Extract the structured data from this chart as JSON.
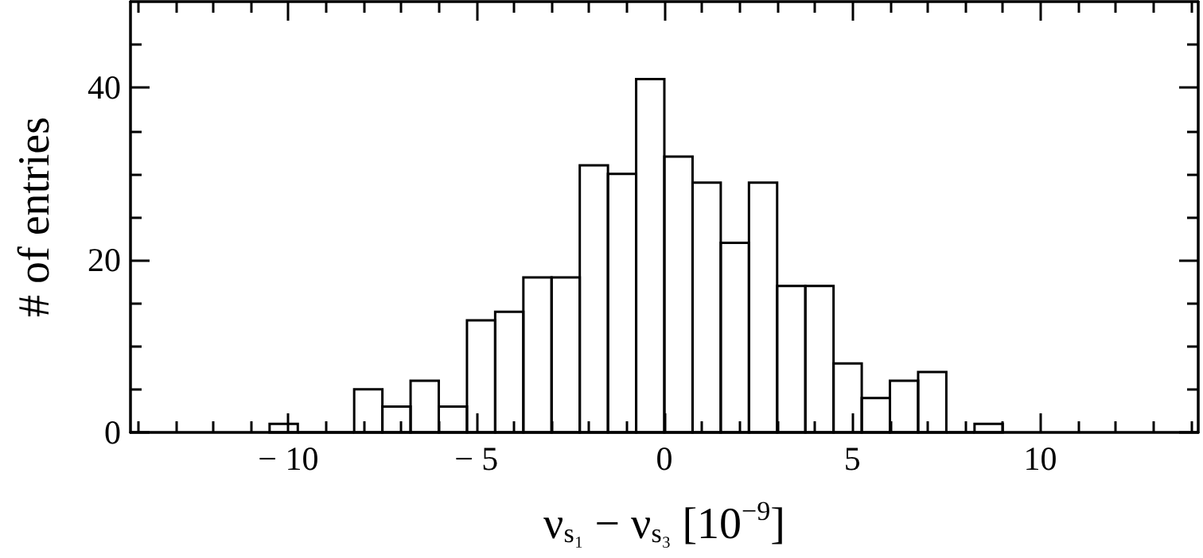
{
  "chart_data": {
    "type": "histogram",
    "xlabel": "ν$_{s₁}$ − ν$_{s₃}$ [10$^{−9}$]",
    "ylabel": "# of entries",
    "bins": [
      -10.5,
      -9.75,
      -9,
      -8.25,
      -7.5,
      -6.75,
      -6,
      -5.25,
      -4.5,
      -3.75,
      -3,
      -2.25,
      -1.5,
      -0.75,
      0,
      0.75,
      1.5,
      2.25,
      3,
      3.75,
      4.5,
      5.25,
      6,
      6.75,
      7.5,
      8.25,
      9
    ],
    "values": [
      1,
      0,
      0,
      5,
      3,
      6,
      3,
      13,
      14,
      18,
      18,
      31,
      30,
      41,
      32,
      29,
      22,
      29,
      17,
      17,
      8,
      4,
      6,
      7,
      0,
      1
    ],
    "xlim": [
      -14.2,
      14.2
    ],
    "xticks": [
      {
        "value": -14,
        "label": null
      },
      {
        "value": -13,
        "label": null
      },
      {
        "value": -12,
        "label": null
      },
      {
        "value": -11,
        "label": null
      },
      {
        "value": -10,
        "label": "− 10"
      },
      {
        "value": -9,
        "label": null
      },
      {
        "value": -8,
        "label": null
      },
      {
        "value": -7,
        "label": null
      },
      {
        "value": -6,
        "label": null
      },
      {
        "value": -5,
        "label": "− 5"
      },
      {
        "value": -4,
        "label": null
      },
      {
        "value": -3,
        "label": null
      },
      {
        "value": -2,
        "label": null
      },
      {
        "value": -1,
        "label": null
      },
      0,
      {
        "value": 1,
        "label": null
      },
      {
        "value": 2,
        "label": null
      },
      {
        "value": 3,
        "label": null
      },
      {
        "value": 4,
        "label": null
      },
      5,
      {
        "value": 6,
        "label": null
      },
      {
        "value": 7,
        "label": null
      },
      {
        "value": 8,
        "label": null
      },
      {
        "value": 9,
        "label": null
      },
      10,
      {
        "value": 11,
        "label": null
      },
      {
        "value": 12,
        "label": null
      },
      {
        "value": 13,
        "label": null
      },
      {
        "value": 14,
        "label": null
      }
    ],
    "ylim": [
      0,
      50
    ],
    "yticks": [
      0,
      {
        "value": 5,
        "label": null
      },
      {
        "value": 10,
        "label": null
      },
      {
        "value": 15,
        "label": null
      },
      20,
      {
        "value": 25,
        "label": null
      },
      {
        "value": 30,
        "label": null
      },
      {
        "value": 35,
        "label": null
      },
      40,
      {
        "value": 45,
        "label": null
      }
    ],
    "color": "#000000"
  }
}
